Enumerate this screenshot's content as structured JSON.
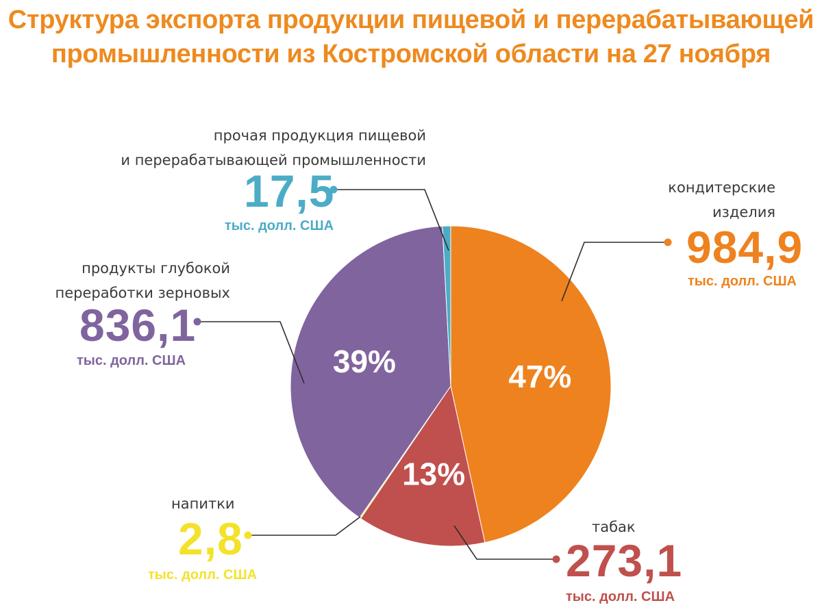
{
  "title": {
    "line1": "Структура экспорта продукции пищевой и перерабатывающей",
    "line2": "промышленности из Костромской области на 27 ноября"
  },
  "chart_data": {
    "type": "pie",
    "title": "Структура экспорта продукции пищевой и перерабатывающей промышленности из Костромской области на 27 ноября",
    "unit": "тыс. долл. США",
    "slices": [
      {
        "key": "confectionery",
        "label_line1": "кондитерские",
        "label_line2": "изделия",
        "value": 984.9,
        "value_text": "984,9",
        "percent_text": "47%",
        "unit": "тыс. долл. США",
        "color": "#ee821e"
      },
      {
        "key": "tobacco",
        "label_line1": "табак",
        "label_line2": "",
        "value": 273.1,
        "value_text": "273,1",
        "percent_text": "13%",
        "unit": "тыс. долл. США",
        "color": "#c0504d"
      },
      {
        "key": "drinks",
        "label_line1": "напитки",
        "label_line2": "",
        "value": 2.8,
        "value_text": "2,8",
        "percent_text": "",
        "unit": "тыс. долл. США",
        "color": "#f4e22a"
      },
      {
        "key": "grain",
        "label_line1": "продукты глубокой",
        "label_line2": "переработки зерновых",
        "value": 836.1,
        "value_text": "836,1",
        "percent_text": "39%",
        "unit": "тыс. долл. США",
        "color": "#80649e"
      },
      {
        "key": "other",
        "label_line1": "прочая продукция пищевой",
        "label_line2": "и перерабатывающей промышленности",
        "value": 17.5,
        "value_text": "17,5",
        "percent_text": "",
        "unit": "тыс. долл. США",
        "color": "#4bacc6"
      }
    ]
  }
}
